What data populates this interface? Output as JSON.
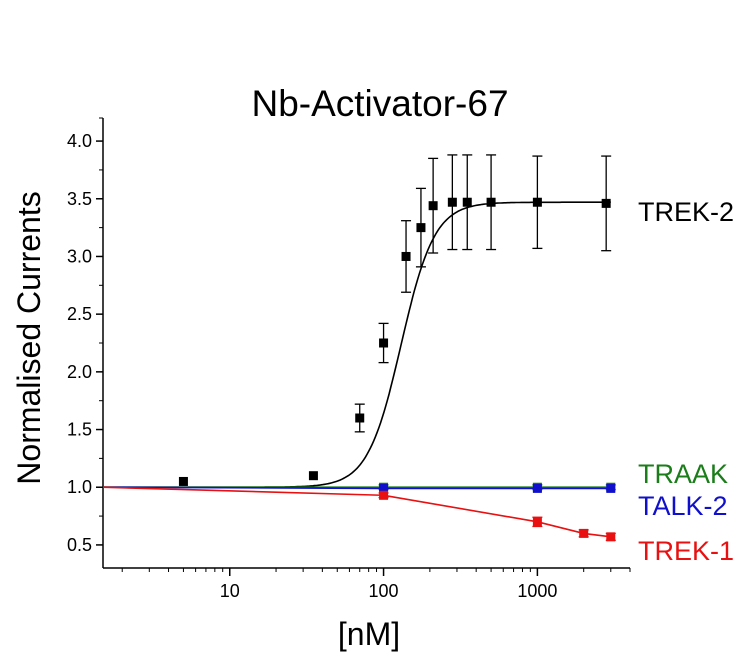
{
  "chart_data": {
    "type": "scatter",
    "title": "Nb-Activator-67",
    "xlabel": "[nM]",
    "ylabel": "Normalised Currents",
    "x_scale": "log",
    "xlim": [
      1.5,
      4000
    ],
    "ylim": [
      0.3,
      4.2
    ],
    "x_ticks": [
      10,
      100,
      1000
    ],
    "x_tick_labels": [
      "10",
      "100",
      "1000"
    ],
    "y_ticks": [
      0.5,
      1.0,
      1.5,
      2.0,
      2.5,
      3.0,
      3.5,
      4.0
    ],
    "y_tick_labels": [
      "0.5",
      "1.0",
      "1.5",
      "2.0",
      "2.5",
      "3.0",
      "3.5",
      "4.0"
    ],
    "grid": false,
    "legend": "none",
    "series": [
      {
        "name": "TREK-2",
        "color": "#000000",
        "connect": "fit",
        "fit": {
          "bottom": 1.0,
          "top": 3.47,
          "ec50": 130,
          "hill": 4.0
        },
        "points": [
          {
            "x": 5,
            "y": 1.05,
            "err": 0
          },
          {
            "x": 35,
            "y": 1.1,
            "err": 0
          },
          {
            "x": 70,
            "y": 1.6,
            "err": 0.12
          },
          {
            "x": 100,
            "y": 2.25,
            "err": 0.17
          },
          {
            "x": 140,
            "y": 3.0,
            "err": 0.31
          },
          {
            "x": 175,
            "y": 3.25,
            "err": 0.34
          },
          {
            "x": 210,
            "y": 3.44,
            "err": 0.41
          },
          {
            "x": 280,
            "y": 3.47,
            "err": 0.41
          },
          {
            "x": 350,
            "y": 3.47,
            "err": 0.41
          },
          {
            "x": 500,
            "y": 3.47,
            "err": 0.41
          },
          {
            "x": 1000,
            "y": 3.47,
            "err": 0.4
          },
          {
            "x": 2800,
            "y": 3.46,
            "err": 0.41
          }
        ]
      },
      {
        "name": "TRAAK",
        "color": "#1a7d1a",
        "connect": "line",
        "points": [
          {
            "x": 1.5,
            "y": 1.0,
            "err": 0
          },
          {
            "x": 100,
            "y": 1.0,
            "err": 0.02
          },
          {
            "x": 1000,
            "y": 1.0,
            "err": 0.02
          },
          {
            "x": 3000,
            "y": 1.0,
            "err": 0.02
          }
        ]
      },
      {
        "name": "TALK-2",
        "color": "#1010cc",
        "connect": "line",
        "points": [
          {
            "x": 1.5,
            "y": 1.0,
            "err": 0
          },
          {
            "x": 100,
            "y": 0.99,
            "err": 0
          },
          {
            "x": 1000,
            "y": 0.99,
            "err": 0
          },
          {
            "x": 3000,
            "y": 0.99,
            "err": 0
          }
        ]
      },
      {
        "name": "TREK-1",
        "color": "#e81010",
        "connect": "line",
        "points": [
          {
            "x": 1.5,
            "y": 1.0,
            "err": 0
          },
          {
            "x": 100,
            "y": 0.93,
            "err": 0.02
          },
          {
            "x": 1000,
            "y": 0.7,
            "err": 0.04
          },
          {
            "x": 2000,
            "y": 0.6,
            "err": 0.03
          },
          {
            "x": 3000,
            "y": 0.57,
            "err": 0.03
          }
        ]
      }
    ]
  }
}
